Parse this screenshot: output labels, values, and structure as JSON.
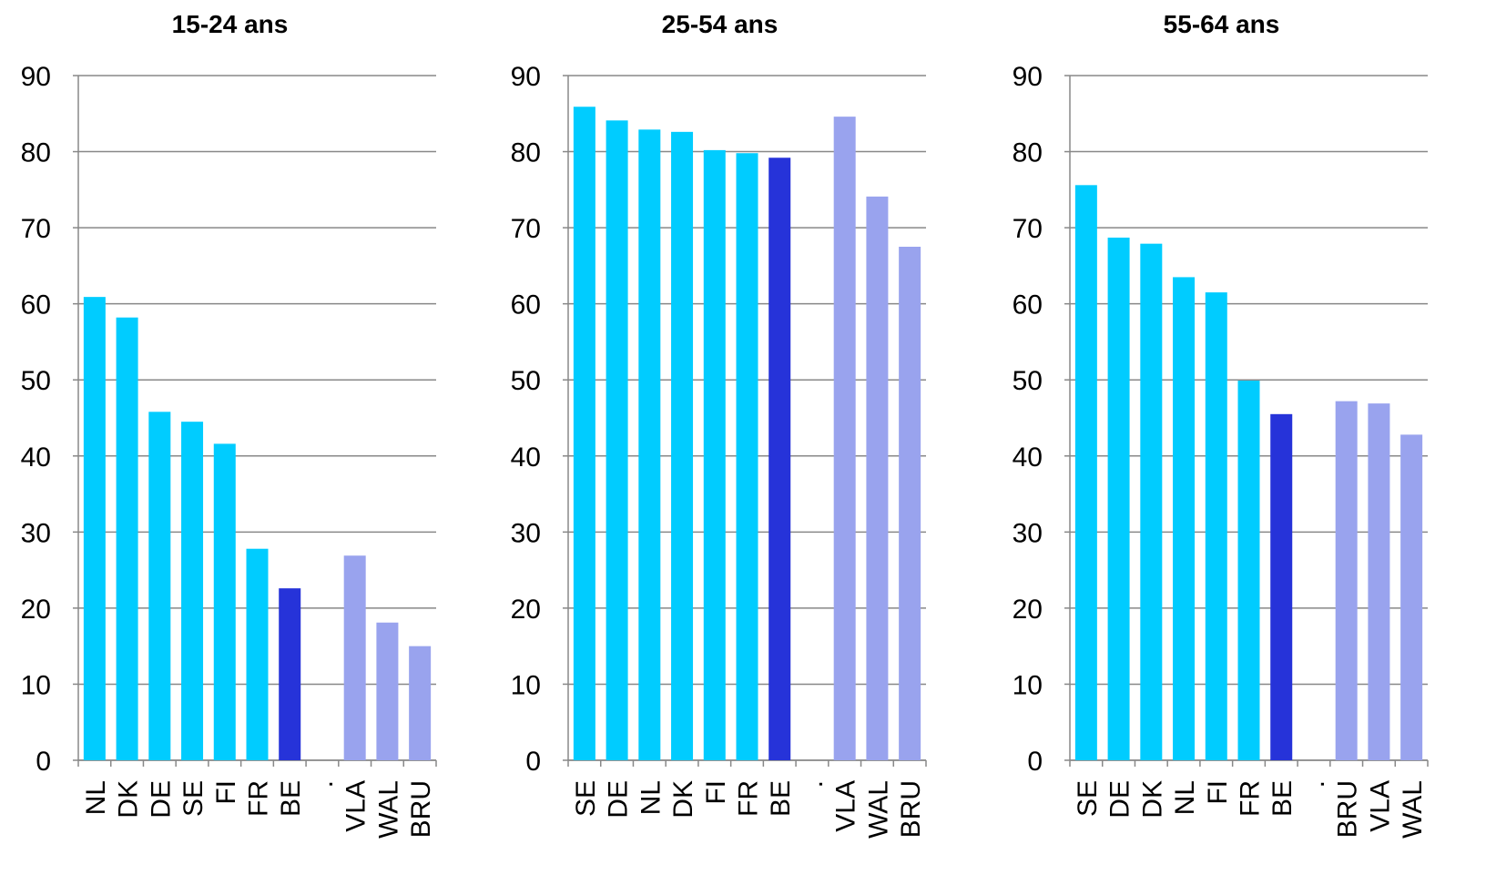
{
  "chart_data": [
    {
      "type": "bar",
      "title": "15-24 ans",
      "categories": [
        "NL",
        "DK",
        "DE",
        "SE",
        "FI",
        "FR",
        "BE",
        ".",
        "VLA",
        "WAL",
        "BRU"
      ],
      "values": [
        60.9,
        58.2,
        45.8,
        44.5,
        41.6,
        27.8,
        22.6,
        null,
        26.9,
        18.1,
        15.0
      ],
      "colors": [
        "#00ccff",
        "#00ccff",
        "#00ccff",
        "#00ccff",
        "#00ccff",
        "#00ccff",
        "#2633d9",
        "#00ccff",
        "#99a3ee",
        "#99a3ee",
        "#99a3ee"
      ],
      "ylim": [
        0,
        90
      ],
      "yticks": [
        0,
        10,
        20,
        30,
        40,
        50,
        60,
        70,
        80,
        90
      ],
      "grid": true
    },
    {
      "type": "bar",
      "title": "25-54 ans",
      "categories": [
        "SE",
        "DE",
        "NL",
        "DK",
        "FI",
        "FR",
        "BE",
        ".",
        "VLA",
        "WAL",
        "BRU"
      ],
      "values": [
        85.9,
        84.1,
        82.9,
        82.6,
        80.2,
        79.8,
        79.2,
        null,
        84.6,
        74.1,
        67.5
      ],
      "colors": [
        "#00ccff",
        "#00ccff",
        "#00ccff",
        "#00ccff",
        "#00ccff",
        "#00ccff",
        "#2633d9",
        "#00ccff",
        "#99a3ee",
        "#99a3ee",
        "#99a3ee"
      ],
      "ylim": [
        0,
        90
      ],
      "yticks": [
        0,
        10,
        20,
        30,
        40,
        50,
        60,
        70,
        80,
        90
      ],
      "grid": true
    },
    {
      "type": "bar",
      "title": "55-64 ans",
      "categories": [
        "SE",
        "DE",
        "DK",
        "NL",
        "FI",
        "FR",
        "BE",
        ".",
        "BRU",
        "VLA",
        "WAL"
      ],
      "values": [
        75.6,
        68.7,
        67.9,
        63.5,
        61.5,
        49.9,
        45.5,
        null,
        47.2,
        46.9,
        42.8
      ],
      "colors": [
        "#00ccff",
        "#00ccff",
        "#00ccff",
        "#00ccff",
        "#00ccff",
        "#00ccff",
        "#2633d9",
        "#00ccff",
        "#99a3ee",
        "#99a3ee",
        "#99a3ee"
      ],
      "ylim": [
        0,
        90
      ],
      "yticks": [
        0,
        10,
        20,
        30,
        40,
        50,
        60,
        70,
        80,
        90
      ],
      "grid": true
    }
  ]
}
